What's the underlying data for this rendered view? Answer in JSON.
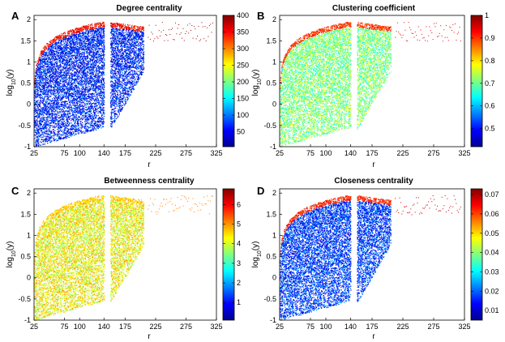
{
  "colormap": [
    "#00008f",
    "#0000ff",
    "#0080ff",
    "#00ffff",
    "#80ff80",
    "#ffff00",
    "#ff8000",
    "#ff0000",
    "#800000"
  ],
  "chart_data": [
    {
      "type": "heatmap",
      "panel_label": "A",
      "title": "Degree centrality",
      "xlabel": "r",
      "ylabel_base": "log",
      "ylabel_sub": "10",
      "ylabel_arg": "(y)",
      "xlim": [
        25,
        325
      ],
      "ylim": [
        -1,
        2.1
      ],
      "xticks": [
        25,
        75,
        100,
        140,
        175,
        225,
        275,
        325
      ],
      "yticks": [
        -1,
        -0.5,
        0,
        0.5,
        1,
        1.5,
        2
      ],
      "colorbar": {
        "min": 5,
        "max": 400,
        "ticks": [
          50,
          100,
          150,
          200,
          250,
          300,
          350,
          400
        ],
        "labels": [
          "50",
          "100",
          "150",
          "200",
          "250",
          "300",
          "350",
          "400"
        ]
      },
      "dominant_level": 0.15,
      "rim_level": 0.95
    },
    {
      "type": "heatmap",
      "panel_label": "B",
      "title": "Clustering coefficient",
      "xlabel": "r",
      "ylabel_base": "log",
      "ylabel_sub": "10",
      "ylabel_arg": "(y)",
      "xlim": [
        25,
        325
      ],
      "ylim": [
        -1,
        2.1
      ],
      "xticks": [
        25,
        75,
        100,
        140,
        175,
        225,
        275,
        325
      ],
      "yticks": [
        -1,
        -0.5,
        0,
        0.5,
        1,
        1.5,
        2
      ],
      "colorbar": {
        "min": 0.42,
        "max": 1,
        "ticks": [
          0.5,
          0.6,
          0.7,
          0.8,
          0.9,
          1
        ],
        "labels": [
          "0.5",
          "0.6",
          "0.7",
          "0.8",
          "0.9",
          "1"
        ]
      },
      "dominant_level": 0.5,
      "rim_level": 0.9
    },
    {
      "type": "heatmap",
      "panel_label": "C",
      "title": "Betweenness centrality",
      "xlabel": "r",
      "ylabel_base": "log",
      "ylabel_sub": "10",
      "ylabel_arg": "(y)",
      "xlim": [
        25,
        325
      ],
      "ylim": [
        -1,
        2.1
      ],
      "xticks": [
        25,
        75,
        100,
        140,
        175,
        225,
        275,
        325
      ],
      "yticks": [
        -1,
        -0.5,
        0,
        0.5,
        1,
        1.5,
        2
      ],
      "colorbar": {
        "min": 0.1,
        "max": 6.8,
        "ticks": [
          1,
          2,
          3,
          4,
          5,
          6
        ],
        "labels": [
          "1",
          "2",
          "3",
          "4",
          "5",
          "6"
        ]
      },
      "dominant_level": 0.62,
      "rim_level": 0.75
    },
    {
      "type": "heatmap",
      "panel_label": "D",
      "title": "Closeness centrality",
      "xlabel": "r",
      "ylabel_base": "log",
      "ylabel_sub": "10",
      "ylabel_arg": "(y)",
      "xlim": [
        25,
        325
      ],
      "ylim": [
        -1,
        2.1
      ],
      "xticks": [
        25,
        75,
        100,
        140,
        175,
        225,
        275,
        325
      ],
      "yticks": [
        -1,
        -0.5,
        0,
        0.5,
        1,
        1.5,
        2
      ],
      "colorbar": {
        "min": 0.005,
        "max": 0.073,
        "ticks": [
          0.01,
          0.02,
          0.03,
          0.04,
          0.05,
          0.06,
          0.07
        ],
        "labels": [
          "0.01",
          "0.02",
          "0.03",
          "0.04",
          "0.05",
          "0.06",
          "0.07"
        ]
      },
      "dominant_level": 0.18,
      "rim_level": 0.92
    }
  ]
}
